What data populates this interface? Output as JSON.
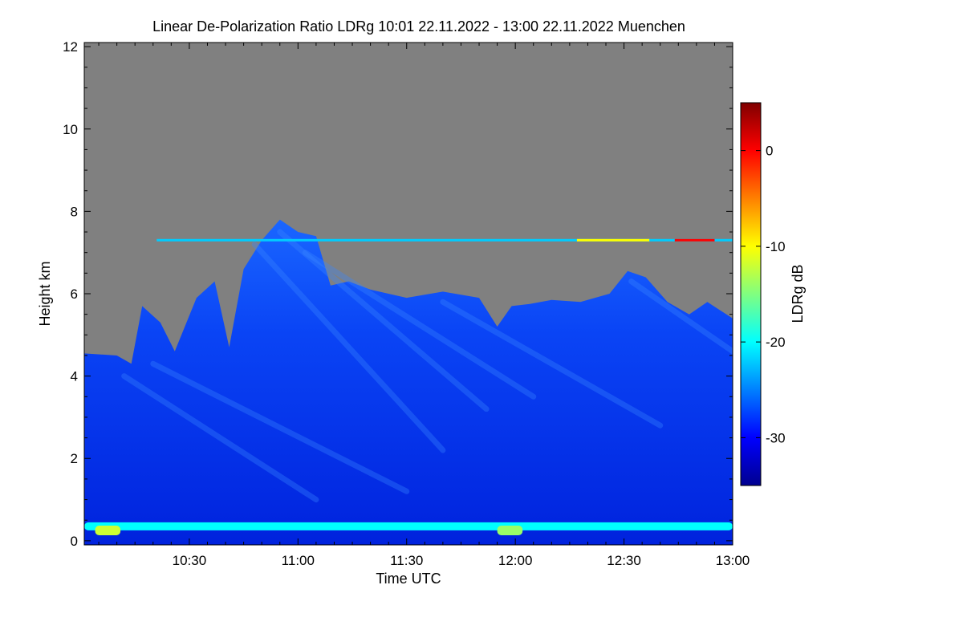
{
  "chart_data": {
    "type": "heatmap",
    "title": "Linear De-Polarization Ratio LDRg   10:01 22.11.2022 - 13:00 22.11.2022 Muenchen",
    "xlabel": "Time UTC",
    "ylabel": "Height km",
    "xlim_minutes_utc": [
      601,
      780
    ],
    "ylim_km": [
      -0.1,
      12.1
    ],
    "x_ticks": [
      {
        "label": "10:30",
        "minutes": 630
      },
      {
        "label": "11:00",
        "minutes": 660
      },
      {
        "label": "11:30",
        "minutes": 690
      },
      {
        "label": "12:00",
        "minutes": 720
      },
      {
        "label": "12:30",
        "minutes": 750
      },
      {
        "label": "13:00",
        "minutes": 780
      }
    ],
    "y_ticks": [
      0,
      2,
      4,
      6,
      8,
      10,
      12
    ],
    "colorbar": {
      "label": "LDRg dB",
      "range": [
        -35,
        5
      ],
      "ticks": [
        0,
        -10,
        -20,
        -30
      ],
      "colormap": [
        "#00008f",
        "#0000ff",
        "#0080ff",
        "#00ffff",
        "#80ff80",
        "#ffff00",
        "#ff8000",
        "#ff0000",
        "#800000"
      ]
    },
    "no_data_color": "#808080",
    "cloud_top_profile_km": [
      {
        "t": 601,
        "h": 4.55
      },
      {
        "t": 610,
        "h": 4.5
      },
      {
        "t": 614,
        "h": 4.3
      },
      {
        "t": 617,
        "h": 5.7
      },
      {
        "t": 622,
        "h": 5.3
      },
      {
        "t": 626,
        "h": 4.6
      },
      {
        "t": 632,
        "h": 5.9
      },
      {
        "t": 637,
        "h": 6.3
      },
      {
        "t": 641,
        "h": 4.7
      },
      {
        "t": 645,
        "h": 6.6
      },
      {
        "t": 650,
        "h": 7.3
      },
      {
        "t": 655,
        "h": 7.8
      },
      {
        "t": 660,
        "h": 7.5
      },
      {
        "t": 665,
        "h": 7.4
      },
      {
        "t": 669,
        "h": 6.2
      },
      {
        "t": 674,
        "h": 6.3
      },
      {
        "t": 680,
        "h": 6.1
      },
      {
        "t": 690,
        "h": 5.9
      },
      {
        "t": 700,
        "h": 6.05
      },
      {
        "t": 710,
        "h": 5.9
      },
      {
        "t": 715,
        "h": 5.2
      },
      {
        "t": 719,
        "h": 5.7
      },
      {
        "t": 724,
        "h": 5.75
      },
      {
        "t": 730,
        "h": 5.85
      },
      {
        "t": 738,
        "h": 5.8
      },
      {
        "t": 746,
        "h": 6.0
      },
      {
        "t": 751,
        "h": 6.55
      },
      {
        "t": 756,
        "h": 6.4
      },
      {
        "t": 762,
        "h": 5.8
      },
      {
        "t": 768,
        "h": 5.5
      },
      {
        "t": 773,
        "h": 5.8
      },
      {
        "t": 780,
        "h": 5.4
      }
    ],
    "features": [
      {
        "name": "thin layer",
        "height_km": 7.3,
        "t_start": 621,
        "t_end": 780,
        "ldr_db": -22
      },
      {
        "name": "boundary layer band",
        "height_km": 0.35,
        "t_start": 601,
        "t_end": 780,
        "ldr_db": -20
      },
      {
        "name": "high-ldr patch",
        "height_km": 0.25,
        "t_start": 604,
        "t_end": 611,
        "ldr_db": -12
      },
      {
        "name": "high-ldr patch",
        "height_km": 0.25,
        "t_start": 715,
        "t_end": 722,
        "ldr_db": -14
      },
      {
        "name": "yellow speckles",
        "height_km": 7.3,
        "t_start": 737,
        "t_end": 757,
        "ldr_db": -10
      },
      {
        "name": "red speckles",
        "height_km": 7.3,
        "t_start": 764,
        "t_end": 775,
        "ldr_db": 0
      }
    ],
    "cloud_ldr_db": -30
  }
}
